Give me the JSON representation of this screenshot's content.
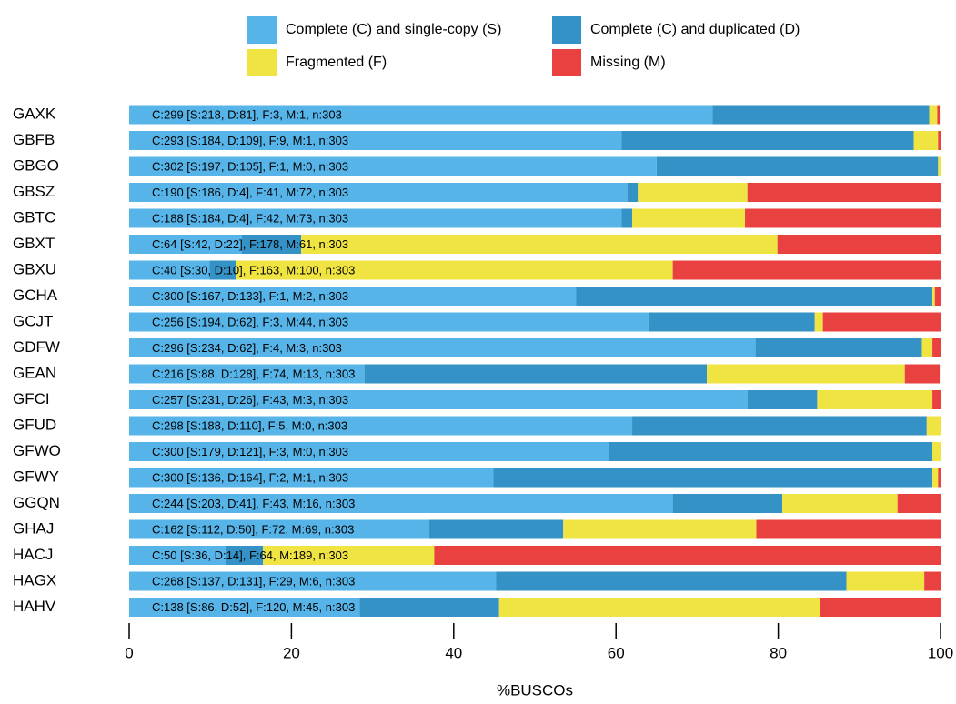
{
  "chart_data": {
    "type": "stacked-bar-horizontal",
    "x_label": "%BUSCOs",
    "categories": [
      "GAXK",
      "GBFB",
      "GBGO",
      "GBSZ",
      "GBTC",
      "GBXT",
      "GBXU",
      "GCHA",
      "GCJT",
      "GDFW",
      "GEAN",
      "GFCI",
      "GFUD",
      "GFWO",
      "GFWY",
      "GGQN",
      "GHAJ",
      "HACJ",
      "HAGX",
      "HAHV"
    ],
    "bar_labels": [
      "C:299 [S:218, D:81], F:3, M:1, n:303",
      "C:293 [S:184, D:109], F:9, M:1, n:303",
      "C:302 [S:197, D:105], F:1, M:0, n:303",
      "C:190 [S:186, D:4], F:41, M:72, n:303",
      "C:188 [S:184, D:4], F:42, M:73, n:303",
      "C:64 [S:42, D:22], F:178, M:61, n:303",
      "C:40 [S:30, D:10], F:163, M:100, n:303",
      "C:300 [S:167, D:133], F:1, M:2, n:303",
      "C:256 [S:194, D:62], F:3, M:44, n:303",
      "C:296 [S:234, D:62], F:4, M:3, n:303",
      "C:216 [S:88, D:128], F:74, M:13, n:303",
      "C:257 [S:231, D:26], F:43, M:3, n:303",
      "C:298 [S:188, D:110], F:5, M:0, n:303",
      "C:300 [S:179, D:121], F:3, M:0, n:303",
      "C:300 [S:136, D:164], F:2, M:1, n:303",
      "C:244 [S:203, D:41], F:43, M:16, n:303",
      "C:162 [S:112, D:50], F:72, M:69, n:303",
      "C:50 [S:36, D:14], F:64, M:189, n:303",
      "C:268 [S:137, D:131], F:29, M:6, n:303",
      "C:138 [S:86, D:52], F:120, M:45, n:303"
    ],
    "series": [
      {
        "name": "Complete (C) and single-copy (S)",
        "color": "#56b4e9",
        "values": [
          71.9,
          60.7,
          65.0,
          61.4,
          60.7,
          13.9,
          9.9,
          55.1,
          64.0,
          77.2,
          29.0,
          76.2,
          62.0,
          59.1,
          44.9,
          67.0,
          37.0,
          11.9,
          45.2,
          28.4
        ]
      },
      {
        "name": "Complete (C) and duplicated (D)",
        "color": "#3492c7",
        "values": [
          26.7,
          36.0,
          34.7,
          1.3,
          1.3,
          7.3,
          3.3,
          43.9,
          20.5,
          20.5,
          42.2,
          8.6,
          36.3,
          39.9,
          54.1,
          13.5,
          16.5,
          4.6,
          43.2,
          17.2
        ]
      },
      {
        "name": "Fragmented (F)",
        "color": "#f0e442",
        "values": [
          1.0,
          3.0,
          0.3,
          13.5,
          13.9,
          58.7,
          53.8,
          0.3,
          1.0,
          1.3,
          24.4,
          14.2,
          1.7,
          1.0,
          0.7,
          14.2,
          23.8,
          21.1,
          9.6,
          39.6
        ]
      },
      {
        "name": "Missing (M)",
        "color": "#e94040",
        "values": [
          0.3,
          0.3,
          0,
          23.8,
          24.1,
          20.1,
          33.0,
          0.7,
          14.5,
          1.0,
          4.3,
          1.0,
          0,
          0,
          0.3,
          5.3,
          22.8,
          62.4,
          2.0,
          14.9
        ]
      }
    ],
    "xlim": [
      0,
      100
    ],
    "xticks": [
      0,
      20,
      40,
      60,
      80,
      100
    ]
  }
}
